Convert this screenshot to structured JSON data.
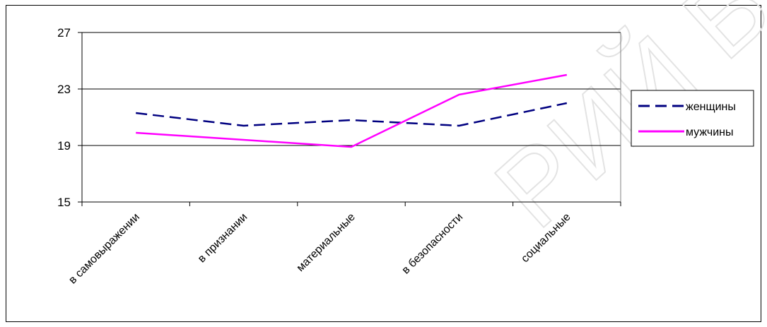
{
  "watermark": "РИЙ БГПУ",
  "chart_data": {
    "type": "line",
    "title": "",
    "xlabel": "",
    "ylabel": "",
    "ylim": [
      15,
      27
    ],
    "yticks": [
      15,
      19,
      23,
      27
    ],
    "grid": true,
    "legend": "right",
    "categories": [
      "в самовыражении",
      "в признании",
      "материальные",
      "в безопасности",
      "социальные"
    ],
    "series": [
      {
        "name": "женщины",
        "values": [
          21.3,
          20.4,
          20.8,
          20.4,
          22.0
        ],
        "color": "#000080",
        "dash": "dashed"
      },
      {
        "name": "мужчины",
        "values": [
          19.9,
          19.4,
          18.9,
          22.6,
          24.0
        ],
        "color": "#ff00ff",
        "dash": "solid"
      }
    ]
  }
}
